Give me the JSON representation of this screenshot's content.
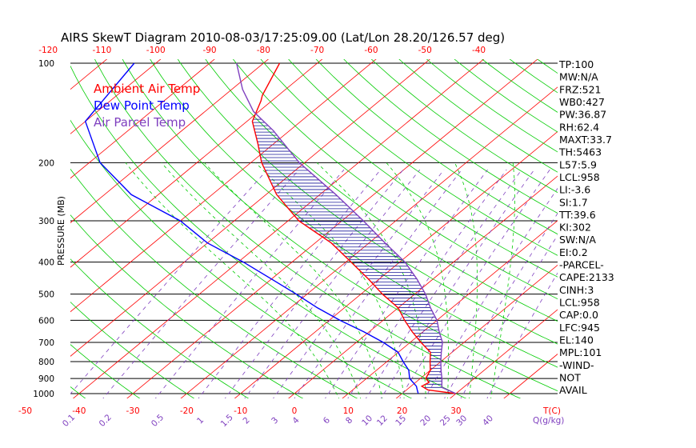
{
  "chart_data": {
    "type": "line",
    "title": "AIRS SkewT Diagram 2010-08-03/17:25:09.00 (Lat/Lon 28.20/126.57 deg)",
    "ylabel": "PRESSURE (MB)",
    "pressure_range_mb": [
      1000,
      100
    ],
    "pressure_ticks": [
      100,
      200,
      300,
      400,
      500,
      600,
      700,
      800,
      900,
      1000
    ],
    "pressure_tick_labels": [
      "100",
      "200",
      "300",
      "400",
      "500",
      "600",
      "700",
      "800",
      "900",
      "1000"
    ],
    "top_temp_ticks": [
      -120,
      -110,
      -100,
      -90,
      -80,
      -70,
      -60,
      -50,
      -40
    ],
    "top_temp_labels": [
      "-120",
      "-110",
      "-100",
      "-90",
      "-80",
      "-70",
      "-60",
      "-50",
      "-40"
    ],
    "bottom_temp_ticks": [
      -50,
      -40,
      -30,
      -20,
      -10,
      0,
      10,
      20,
      30
    ],
    "bottom_temp_labels": [
      "-50",
      "-40",
      "-30",
      "-20",
      "-10",
      "0",
      "10",
      "20",
      "30"
    ],
    "bottom_unit_label": "T(C)",
    "mixing_ratio_ticks": [
      0.1,
      0.2,
      0.5,
      1,
      1.5,
      2,
      3,
      4,
      6,
      8,
      10,
      12,
      15,
      20,
      25,
      30,
      40
    ],
    "mixing_ratio_labels": [
      "0.1",
      "0.2",
      "0.5",
      "1",
      "1.5",
      "2",
      "3",
      "4",
      "6",
      "8",
      "10",
      "12",
      "15",
      "20",
      "25",
      "30",
      "40"
    ],
    "mixing_ratio_unit": "Q(g/kg)",
    "legend": [
      {
        "label": "Ambient Air Temp",
        "color": "#ff0000"
      },
      {
        "label": "Dew Point Temp",
        "color": "#0000ff"
      },
      {
        "label": "Air Parcel Temp",
        "color": "#7f3fbf"
      }
    ],
    "series": [
      {
        "name": "Ambient Air Temp",
        "color": "#ff0000",
        "points": [
          [
            1000,
            30
          ],
          [
            975,
            24
          ],
          [
            950,
            22
          ],
          [
            925,
            22.5
          ],
          [
            900,
            21
          ],
          [
            850,
            20
          ],
          [
            800,
            18
          ],
          [
            750,
            16
          ],
          [
            700,
            12
          ],
          [
            650,
            8
          ],
          [
            600,
            4
          ],
          [
            550,
            0
          ],
          [
            500,
            -6
          ],
          [
            450,
            -12
          ],
          [
            400,
            -19
          ],
          [
            350,
            -27
          ],
          [
            300,
            -38
          ],
          [
            250,
            -48
          ],
          [
            200,
            -58
          ],
          [
            175,
            -63
          ],
          [
            150,
            -69
          ],
          [
            130,
            -72
          ],
          [
            125,
            -73
          ],
          [
            100,
            -77
          ]
        ]
      },
      {
        "name": "Dew Point Temp",
        "color": "#0000ff",
        "points": [
          [
            1000,
            23
          ],
          [
            975,
            22
          ],
          [
            950,
            21
          ],
          [
            900,
            18
          ],
          [
            850,
            16
          ],
          [
            800,
            13
          ],
          [
            750,
            10
          ],
          [
            700,
            5
          ],
          [
            650,
            -1
          ],
          [
            600,
            -8
          ],
          [
            550,
            -15
          ],
          [
            500,
            -22
          ],
          [
            450,
            -30
          ],
          [
            400,
            -39
          ],
          [
            350,
            -50
          ],
          [
            300,
            -60
          ],
          [
            250,
            -75
          ],
          [
            200,
            -88
          ],
          [
            150,
            -100
          ],
          [
            100,
            -104
          ]
        ]
      },
      {
        "name": "Air Parcel Temp",
        "color": "#7f3fbf",
        "points": [
          [
            1000,
            30
          ],
          [
            958,
            26
          ],
          [
            900,
            24
          ],
          [
            850,
            22
          ],
          [
            800,
            20
          ],
          [
            750,
            18
          ],
          [
            700,
            16
          ],
          [
            650,
            13
          ],
          [
            600,
            10
          ],
          [
            550,
            6
          ],
          [
            500,
            2
          ],
          [
            450,
            -3
          ],
          [
            400,
            -9
          ],
          [
            350,
            -17
          ],
          [
            300,
            -26
          ],
          [
            250,
            -37
          ],
          [
            200,
            -51
          ],
          [
            160,
            -63
          ],
          [
            140,
            -71
          ],
          [
            120,
            -78
          ],
          [
            100,
            -85
          ]
        ]
      }
    ],
    "indices": [
      "TP:100",
      "MW:N/A",
      "FRZ:521",
      "WB0:427",
      "PW:36.87",
      "RH:62.4",
      "MAXT:33.7",
      "TH:5463",
      "L57:5.9",
      "LCL:958",
      "LI:-3.6",
      "SI:1.7",
      "TT:39.6",
      "KI:302",
      "SW:N/A",
      "EI:0.2",
      "-PARCEL-",
      "CAPE:2133",
      "CINH:3",
      "LCL:958",
      "CAP:0.0",
      "LFC:945",
      "EL:140",
      "MPL:101",
      "-WIND-",
      "NOT",
      "AVAIL"
    ],
    "colors": {
      "isotherm": "#ff0000",
      "dry_adiabat": "#00cc00",
      "moist_adiabat": "#00cc00",
      "mixing_ratio": "#7f3fbf",
      "isobar": "#000000",
      "hatch": "#1a1a9a"
    }
  }
}
